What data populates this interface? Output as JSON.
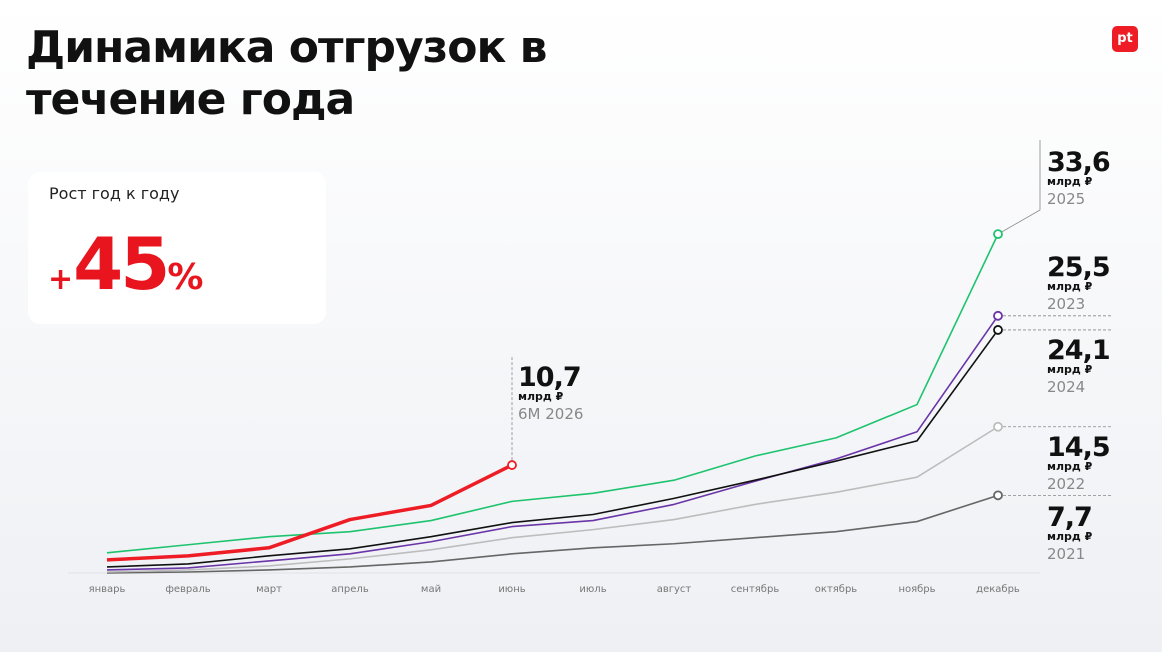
{
  "logo": "pt",
  "title": "Динамика отгрузок в течение года",
  "kpi": {
    "label": "Рост год к году",
    "prefix": "+",
    "value": 45,
    "suffix": "%"
  },
  "chart_data": {
    "type": "line",
    "unit": "млрд ₽",
    "categories": [
      "январь",
      "февраль",
      "март",
      "апрель",
      "май",
      "июнь",
      "июль",
      "август",
      "сентябрь",
      "октябрь",
      "ноябрь",
      "декабрь"
    ],
    "ylim": [
      0,
      35
    ],
    "series": [
      {
        "name": "2021",
        "color": "#666666",
        "values": [
          0,
          0.1,
          0.3,
          0.6,
          1.1,
          1.9,
          2.5,
          2.9,
          3.5,
          4.1,
          5.1,
          7.7
        ],
        "value_labels": [
          null,
          null,
          null,
          null,
          null,
          null,
          null,
          null,
          null,
          null,
          null,
          "7,7"
        ]
      },
      {
        "name": "2022",
        "color": "#bdbdbd",
        "values": [
          0.1,
          0.3,
          0.7,
          1.4,
          2.3,
          3.5,
          4.3,
          5.3,
          6.8,
          8.0,
          9.5,
          14.5
        ],
        "value_labels": [
          null,
          null,
          null,
          null,
          null,
          null,
          null,
          null,
          null,
          null,
          null,
          "14,5"
        ]
      },
      {
        "name": "2023",
        "color": "#6a35a8",
        "values": [
          0.3,
          0.5,
          1.2,
          1.9,
          3.1,
          4.6,
          5.2,
          6.8,
          9.1,
          11.3,
          14.0,
          25.5
        ],
        "value_labels": [
          null,
          null,
          null,
          null,
          null,
          null,
          null,
          null,
          null,
          null,
          null,
          "25,5"
        ]
      },
      {
        "name": "2024",
        "color": "#111111",
        "values": [
          0.6,
          0.9,
          1.7,
          2.4,
          3.6,
          5.0,
          5.8,
          7.4,
          9.2,
          11.1,
          13.1,
          24.1
        ],
        "value_labels": [
          null,
          null,
          null,
          null,
          null,
          null,
          null,
          null,
          null,
          null,
          null,
          "24,1"
        ]
      },
      {
        "name": "2025",
        "color": "#1ec36e",
        "values": [
          2.0,
          2.8,
          3.6,
          4.1,
          5.2,
          7.1,
          7.9,
          9.2,
          11.6,
          13.4,
          16.7,
          33.6
        ],
        "value_labels": [
          null,
          null,
          null,
          null,
          null,
          null,
          null,
          null,
          null,
          null,
          null,
          "33,6"
        ]
      },
      {
        "name": "6M 2026",
        "color": "#ee1c25",
        "values": [
          1.3,
          1.7,
          2.5,
          5.3,
          6.7,
          10.7,
          null,
          null,
          null,
          null,
          null,
          null
        ],
        "value_labels": [
          null,
          null,
          null,
          null,
          null,
          "10,7",
          null,
          null,
          null,
          null,
          null,
          null
        ]
      }
    ]
  }
}
